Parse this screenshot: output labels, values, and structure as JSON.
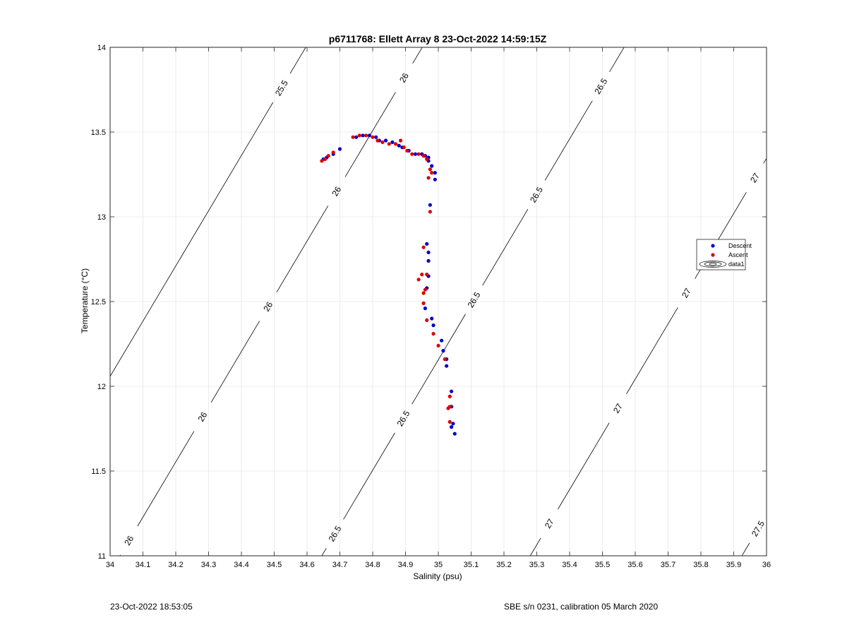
{
  "chart_data": {
    "type": "scatter",
    "title": "p6711768: Ellett Array 8 23-Oct-2022 14:59:15Z",
    "xlabel": "Salinity (psu)",
    "ylabel": "Temperature (°C)",
    "xlim": [
      34,
      36
    ],
    "ylim": [
      11,
      14
    ],
    "xticks": [
      34,
      34.1,
      34.2,
      34.3,
      34.4,
      34.5,
      34.6,
      34.7,
      34.8,
      34.9,
      35,
      35.1,
      35.2,
      35.3,
      35.4,
      35.5,
      35.6,
      35.7,
      35.8,
      35.9,
      36
    ],
    "xtick_labels": [
      "34",
      "34.1",
      "34.2",
      "34.3",
      "34.4",
      "34.5",
      "34.6",
      "34.7",
      "34.8",
      "34.9",
      "35",
      "35.1",
      "35.2",
      "35.3",
      "35.4",
      "35.5",
      "35.6",
      "35.7",
      "35.8",
      "35.9",
      "36"
    ],
    "yticks": [
      11,
      11.5,
      12,
      12.5,
      13,
      13.5,
      14
    ],
    "ytick_labels": [
      "11",
      "11.5",
      "12",
      "12.5",
      "13",
      "13.5",
      "14"
    ],
    "grid": true,
    "legend": {
      "placement": "right",
      "entries": [
        "Descent",
        "Ascent",
        "data1"
      ]
    },
    "series": [
      {
        "name": "Descent",
        "color": "#0000cc",
        "points": [
          [
            34.65,
            13.34
          ],
          [
            34.66,
            13.35
          ],
          [
            34.68,
            13.37
          ],
          [
            34.7,
            13.4
          ],
          [
            34.75,
            13.47
          ],
          [
            34.77,
            13.48
          ],
          [
            34.79,
            13.48
          ],
          [
            34.81,
            13.47
          ],
          [
            34.82,
            13.45
          ],
          [
            34.84,
            13.45
          ],
          [
            34.86,
            13.44
          ],
          [
            34.88,
            13.42
          ],
          [
            34.89,
            13.41
          ],
          [
            34.91,
            13.39
          ],
          [
            34.93,
            13.37
          ],
          [
            34.95,
            13.37
          ],
          [
            34.96,
            13.36
          ],
          [
            34.97,
            13.35
          ],
          [
            34.97,
            13.33
          ],
          [
            34.98,
            13.3
          ],
          [
            34.99,
            13.26
          ],
          [
            34.99,
            13.22
          ],
          [
            34.975,
            13.07
          ],
          [
            34.965,
            12.84
          ],
          [
            34.97,
            12.79
          ],
          [
            34.97,
            12.74
          ],
          [
            34.97,
            12.65
          ],
          [
            34.965,
            12.58
          ],
          [
            34.96,
            12.46
          ],
          [
            34.98,
            12.4
          ],
          [
            34.985,
            12.36
          ],
          [
            35.01,
            12.27
          ],
          [
            35.015,
            12.21
          ],
          [
            35.025,
            12.16
          ],
          [
            35.025,
            12.12
          ],
          [
            35.04,
            11.97
          ],
          [
            35.04,
            11.88
          ],
          [
            35.04,
            11.76
          ],
          [
            35.045,
            11.78
          ],
          [
            35.05,
            11.72
          ]
        ]
      },
      {
        "name": "Ascent",
        "color": "#dd0000",
        "points": [
          [
            34.645,
            13.33
          ],
          [
            34.655,
            13.34
          ],
          [
            34.665,
            13.36
          ],
          [
            34.68,
            13.38
          ],
          [
            34.74,
            13.47
          ],
          [
            34.76,
            13.48
          ],
          [
            34.78,
            13.48
          ],
          [
            34.8,
            13.47
          ],
          [
            34.815,
            13.45
          ],
          [
            34.83,
            13.44
          ],
          [
            34.85,
            13.43
          ],
          [
            34.87,
            13.43
          ],
          [
            34.885,
            13.45
          ],
          [
            34.895,
            13.41
          ],
          [
            34.905,
            13.39
          ],
          [
            34.92,
            13.37
          ],
          [
            34.94,
            13.37
          ],
          [
            34.955,
            13.36
          ],
          [
            34.965,
            13.34
          ],
          [
            34.975,
            13.28
          ],
          [
            34.98,
            13.26
          ],
          [
            34.97,
            13.23
          ],
          [
            34.975,
            13.03
          ],
          [
            34.955,
            12.82
          ],
          [
            34.965,
            12.66
          ],
          [
            34.95,
            12.66
          ],
          [
            34.94,
            12.63
          ],
          [
            34.96,
            12.57
          ],
          [
            34.955,
            12.49
          ],
          [
            34.955,
            12.55
          ],
          [
            34.965,
            12.39
          ],
          [
            34.985,
            12.31
          ],
          [
            35.0,
            12.24
          ],
          [
            35.02,
            12.16
          ],
          [
            35.035,
            11.94
          ],
          [
            35.03,
            11.87
          ],
          [
            35.035,
            11.88
          ],
          [
            35.035,
            11.79
          ]
        ]
      }
    ],
    "density_contours": [
      {
        "label": "25.5",
        "intercept": 33.675,
        "label_positions": [
          13.76
        ]
      },
      {
        "label": "26",
        "intercept": 34.03,
        "label_positions": [
          13.82,
          13.15,
          12.47,
          11.82,
          11.09
        ]
      },
      {
        "label": "26.5",
        "intercept": 34.645,
        "label_positions": [
          13.77,
          13.13,
          12.51,
          11.81,
          11.13
        ]
      },
      {
        "label": "27",
        "intercept": 35.28,
        "label_positions": [
          13.23,
          12.55,
          11.87,
          11.19
        ]
      },
      {
        "label": "27.5",
        "intercept": 35.925,
        "label_positions": [
          11.16
        ]
      }
    ],
    "isopycnal_slope": 0.307
  },
  "footer": {
    "left": "23-Oct-2022 18:53:05",
    "right": "SBE s/n 0231, calibration 05 March 2020"
  }
}
